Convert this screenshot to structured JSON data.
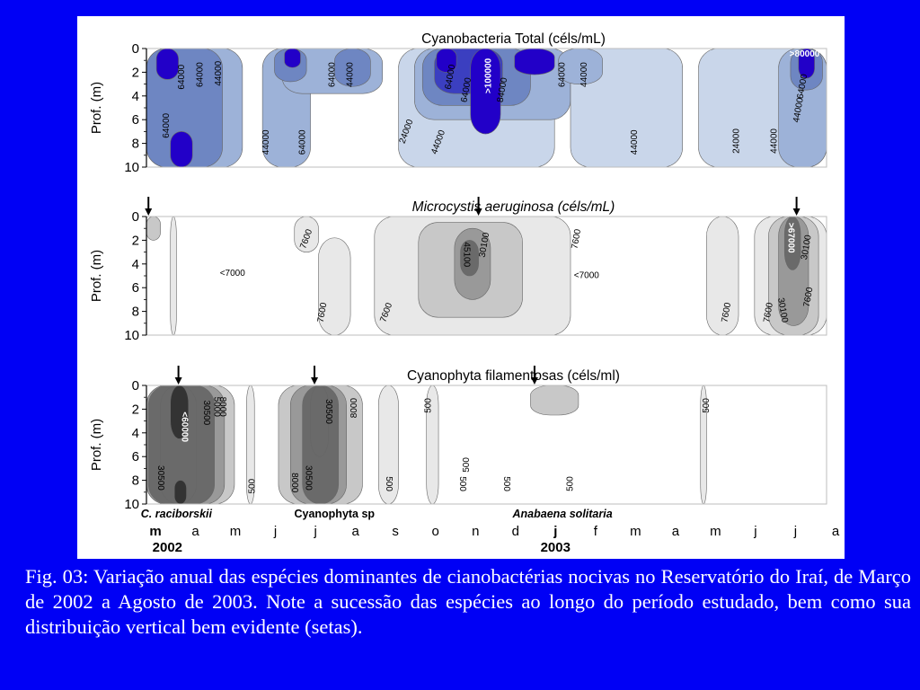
{
  "figure": {
    "panels": [
      {
        "title": "Cyanobacteria Total (céls/mL)",
        "title_italic": false,
        "ylabel": "Prof. (m)",
        "yticks": [
          "0",
          "2",
          "4",
          "6",
          "8",
          "10"
        ],
        "arrows": [],
        "contour_labels": [
          {
            "text": "64000",
            "x": 0.5,
            "y": 6.5,
            "rot": -90
          },
          {
            "text": "64000",
            "x": 0.88,
            "y": 2.4,
            "rot": -90
          },
          {
            "text": "64000",
            "x": 1.35,
            "y": 2.2,
            "rot": -90
          },
          {
            "text": "44000",
            "x": 1.8,
            "y": 2.1,
            "rot": -90
          },
          {
            "text": "44000",
            "x": 3.0,
            "y": 7.9,
            "rot": -90
          },
          {
            "text": "64000",
            "x": 3.9,
            "y": 7.9,
            "rot": -90
          },
          {
            "text": "64000",
            "x": 4.65,
            "y": 2.2,
            "rot": -90
          },
          {
            "text": "44000",
            "x": 5.1,
            "y": 2.2,
            "rot": -90
          },
          {
            "text": "24000",
            "x": 6.5,
            "y": 7.0,
            "rot": -70
          },
          {
            "text": "44000",
            "x": 7.3,
            "y": 7.9,
            "rot": -70
          },
          {
            "text": "64000",
            "x": 7.6,
            "y": 2.4,
            "rot": -80
          },
          {
            "text": "64000",
            "x": 8.0,
            "y": 3.5,
            "rot": -80
          },
          {
            "text": ">100000",
            "x": 8.55,
            "y": 2.3,
            "rot": -90,
            "color": "#ffffff"
          },
          {
            "text": "84000",
            "x": 8.9,
            "y": 3.5,
            "rot": -80
          },
          {
            "text": "64000",
            "x": 10.4,
            "y": 2.2,
            "rot": -90
          },
          {
            "text": "44000",
            "x": 10.95,
            "y": 2.2,
            "rot": -90
          },
          {
            "text": "44000",
            "x": 12.2,
            "y": 7.9,
            "rot": -90
          },
          {
            "text": "24000",
            "x": 14.75,
            "y": 7.8,
            "rot": -90
          },
          {
            "text": "44000",
            "x": 15.7,
            "y": 7.8,
            "rot": -90
          },
          {
            "text": "64000",
            "x": 16.4,
            "y": 3.2,
            "rot": -80
          },
          {
            "text": "44000",
            "x": 16.3,
            "y": 5.2,
            "rot": -80
          },
          {
            "text": ">80000",
            "x": 16.45,
            "y": 0.5,
            "rot": 0,
            "color": "#ffffff"
          }
        ]
      },
      {
        "title": "Microcystis aeruginosa (céls/mL)",
        "title_italic": true,
        "ylabel": "Prof. (m)",
        "yticks": [
          "0",
          "2",
          "4",
          "6",
          "8",
          "10"
        ],
        "arrows": [
          0.05,
          8.3,
          16.25
        ],
        "contour_labels": [
          {
            "text": "7600",
            "x": 4.0,
            "y": 1.9,
            "rot": -70
          },
          {
            "text": "<7000",
            "x": 2.15,
            "y": 4.8,
            "rot": 0
          },
          {
            "text": "7600",
            "x": 4.4,
            "y": 8.1,
            "rot": -80
          },
          {
            "text": "7600",
            "x": 6.0,
            "y": 8.1,
            "rot": -70
          },
          {
            "text": "45100",
            "x": 8.0,
            "y": 3.2,
            "rot": 90
          },
          {
            "text": "30100",
            "x": 8.45,
            "y": 2.4,
            "rot": -80
          },
          {
            "text": "7600",
            "x": 10.75,
            "y": 1.9,
            "rot": -80
          },
          {
            "text": "<7000",
            "x": 11.0,
            "y": 5.0,
            "rot": 0
          },
          {
            "text": "7600",
            "x": 14.5,
            "y": 8.1,
            "rot": -80
          },
          {
            "text": ">67000",
            "x": 16.1,
            "y": 1.8,
            "rot": 90,
            "color": "#ffffff"
          },
          {
            "text": "30100",
            "x": 16.5,
            "y": 2.6,
            "rot": -80
          },
          {
            "text": "30100",
            "x": 15.9,
            "y": 7.9,
            "rot": 80
          },
          {
            "text": "7600",
            "x": 15.55,
            "y": 8.1,
            "rot": -80
          },
          {
            "text": "7600",
            "x": 16.55,
            "y": 6.8,
            "rot": -80
          }
        ]
      },
      {
        "title": "Cyanophyta filamentosas (céls/ml)",
        "title_italic": false,
        "ylabel": "Prof. (m)",
        "yticks": [
          "0",
          "2",
          "4",
          "6",
          "8",
          "10"
        ],
        "arrows": [
          0.8,
          4.2,
          9.7
        ],
        "contour_labels": [
          {
            "text": "<60000",
            "x": 0.95,
            "y": 3.5,
            "rot": 90,
            "color": "#ffffff"
          },
          {
            "text": "30500",
            "x": 1.5,
            "y": 2.3,
            "rot": 90
          },
          {
            "text": "5000",
            "x": 1.75,
            "y": 1.8,
            "rot": 90
          },
          {
            "text": "8000",
            "x": 1.9,
            "y": 1.8,
            "rot": 90
          },
          {
            "text": "30500",
            "x": 0.35,
            "y": 7.8,
            "rot": 90
          },
          {
            "text": "500",
            "x": 2.65,
            "y": 8.5,
            "rot": -90
          },
          {
            "text": "8000",
            "x": 3.7,
            "y": 8.2,
            "rot": 90
          },
          {
            "text": "30500",
            "x": 4.05,
            "y": 7.8,
            "rot": 90
          },
          {
            "text": "30500",
            "x": 4.55,
            "y": 2.2,
            "rot": 90
          },
          {
            "text": "8000",
            "x": 5.2,
            "y": 1.9,
            "rot": -90
          },
          {
            "text": "500",
            "x": 6.05,
            "y": 8.3,
            "rot": 90
          },
          {
            "text": "500",
            "x": 7.05,
            "y": 1.7,
            "rot": -90
          },
          {
            "text": "500",
            "x": 8.0,
            "y": 6.7,
            "rot": -90
          },
          {
            "text": "500",
            "x": 7.9,
            "y": 8.3,
            "rot": 90
          },
          {
            "text": "500",
            "x": 9.0,
            "y": 8.3,
            "rot": 90
          },
          {
            "text": "500",
            "x": 10.6,
            "y": 8.3,
            "rot": -90
          },
          {
            "text": "500",
            "x": 14.0,
            "y": 1.7,
            "rot": -90
          }
        ]
      }
    ],
    "species_labels": [
      {
        "text": "C. raciborskii",
        "month": 0.75,
        "italic": true
      },
      {
        "text": "Cyanophyta sp",
        "month": 4.7,
        "italic": false
      },
      {
        "text": "Anabaena solitaria",
        "month": 10.4,
        "italic": true
      }
    ],
    "months": [
      "m",
      "a",
      "m",
      "j",
      "j",
      "a",
      "s",
      "o",
      "n",
      "d",
      "j",
      "f",
      "m",
      "a",
      "m",
      "j",
      "j",
      "a"
    ],
    "bold_months": [
      0,
      10
    ],
    "years": [
      {
        "text": "2002",
        "month": 0.3
      },
      {
        "text": "2003",
        "month": 10.0
      }
    ]
  },
  "chart_data": [
    {
      "type": "heatmap",
      "title": "Cyanobacteria Total (céls/mL)",
      "xlabel": "",
      "ylabel": "Prof. (m)",
      "x": [
        "m",
        "a",
        "m",
        "j",
        "j",
        "a",
        "s",
        "o",
        "n",
        "d",
        "j",
        "f",
        "m",
        "a",
        "m",
        "j",
        "j",
        "a"
      ],
      "x_years": {
        "2002": "m",
        "2003": "j"
      },
      "ylim": [
        10,
        0
      ],
      "contour_levels": [
        24000,
        44000,
        64000,
        84000,
        100000
      ],
      "max_label": ">100000",
      "annotation": ">80000",
      "color_scale": [
        "#ffffff",
        "#c9d6ea",
        "#9db2d8",
        "#6e86c2",
        "#3b3fc0",
        "#2200c8"
      ],
      "cells": [
        {
          "x0": 0.0,
          "x1": 2.4,
          "y0": 0,
          "y1": 10,
          "v": 44000
        },
        {
          "x0": 0.0,
          "x1": 1.9,
          "y0": 0,
          "y1": 10,
          "v": 64000
        },
        {
          "x0": 0.25,
          "x1": 0.8,
          "y0": 0,
          "y1": 2.6,
          "v": 100000
        },
        {
          "x0": 0.6,
          "x1": 1.15,
          "y0": 7.0,
          "y1": 10,
          "v": 100000
        },
        {
          "x0": 2.9,
          "x1": 4.1,
          "y0": 0,
          "y1": 10,
          "v": 44000
        },
        {
          "x0": 3.4,
          "x1": 5.9,
          "y0": 0,
          "y1": 3.8,
          "v": 44000
        },
        {
          "x0": 3.2,
          "x1": 4.0,
          "y0": 0,
          "y1": 2.8,
          "v": 64000
        },
        {
          "x0": 3.45,
          "x1": 3.85,
          "y0": 0,
          "y1": 1.6,
          "v": 100000
        },
        {
          "x0": 4.7,
          "x1": 5.6,
          "y0": 0,
          "y1": 3.2,
          "v": 64000
        },
        {
          "x0": 6.3,
          "x1": 10.2,
          "y0": 0,
          "y1": 10,
          "v": 24000
        },
        {
          "x0": 6.7,
          "x1": 10.6,
          "y0": 0,
          "y1": 6.0,
          "v": 44000
        },
        {
          "x0": 6.9,
          "x1": 9.6,
          "y0": 0,
          "y1": 4.8,
          "v": 64000
        },
        {
          "x0": 7.2,
          "x1": 8.9,
          "y0": 0,
          "y1": 3.8,
          "v": 84000
        },
        {
          "x0": 8.1,
          "x1": 8.85,
          "y0": 0,
          "y1": 7.2,
          "v": 100000
        },
        {
          "x0": 7.25,
          "x1": 7.75,
          "y0": 0,
          "y1": 2.0,
          "v": 100000
        },
        {
          "x0": 9.2,
          "x1": 10.2,
          "y0": 0,
          "y1": 2.2,
          "v": 100000
        },
        {
          "x0": 10.6,
          "x1": 13.4,
          "y0": 0,
          "y1": 10,
          "v": 24000
        },
        {
          "x0": 10.3,
          "x1": 11.4,
          "y0": 0,
          "y1": 3.0,
          "v": 44000
        },
        {
          "x0": 13.8,
          "x1": 17.0,
          "y0": 0,
          "y1": 10,
          "v": 24000
        },
        {
          "x0": 15.8,
          "x1": 17.0,
          "y0": 0,
          "y1": 10,
          "v": 44000
        },
        {
          "x0": 16.1,
          "x1": 16.9,
          "y0": 0,
          "y1": 3.5,
          "v": 64000
        },
        {
          "x0": 16.3,
          "x1": 16.7,
          "y0": 0,
          "y1": 2.5,
          "v": 100000
        }
      ]
    },
    {
      "type": "heatmap",
      "title": "Microcystis aeruginosa (céls/mL)",
      "xlabel": "",
      "ylabel": "Prof. (m)",
      "x": [
        "m",
        "a",
        "m",
        "j",
        "j",
        "a",
        "s",
        "o",
        "n",
        "d",
        "j",
        "f",
        "m",
        "a",
        "m",
        "j",
        "j",
        "a"
      ],
      "ylim": [
        10,
        0
      ],
      "contour_levels": [
        7600,
        30100,
        45100,
        67000
      ],
      "min_label": "<7000",
      "max_label": ">67000",
      "color_scale": [
        "#ffffff",
        "#e8e8e8",
        "#c8c8c8",
        "#999999",
        "#6a6a6a",
        "#333333",
        "#0a0a0a"
      ],
      "cells": [
        {
          "x0": 0.0,
          "x1": 0.35,
          "y0": 0,
          "y1": 2.0,
          "v": 30100
        },
        {
          "x0": 0.6,
          "x1": 0.75,
          "y0": 0,
          "y1": 10,
          "v": 7600
        },
        {
          "x0": 3.7,
          "x1": 4.3,
          "y0": 0,
          "y1": 3.0,
          "v": 7600
        },
        {
          "x0": 4.3,
          "x1": 5.1,
          "y0": 1.8,
          "y1": 10,
          "v": 7600
        },
        {
          "x0": 5.7,
          "x1": 10.6,
          "y0": 0,
          "y1": 10,
          "v": 7600
        },
        {
          "x0": 6.8,
          "x1": 9.4,
          "y0": 0.5,
          "y1": 8.5,
          "v": 30100
        },
        {
          "x0": 7.7,
          "x1": 8.6,
          "y0": 1.0,
          "y1": 7.0,
          "v": 45100
        },
        {
          "x0": 7.85,
          "x1": 8.3,
          "y0": 2.0,
          "y1": 5.0,
          "v": 67000
        },
        {
          "x0": 14.0,
          "x1": 14.8,
          "y0": 0,
          "y1": 10,
          "v": 7600
        },
        {
          "x0": 15.2,
          "x1": 17.0,
          "y0": 0,
          "y1": 10,
          "v": 7600
        },
        {
          "x0": 15.55,
          "x1": 16.8,
          "y0": 0,
          "y1": 10,
          "v": 30100
        },
        {
          "x0": 15.8,
          "x1": 16.55,
          "y0": 0,
          "y1": 9.2,
          "v": 45100
        },
        {
          "x0": 15.95,
          "x1": 16.35,
          "y0": 0,
          "y1": 4.5,
          "v": 67000
        }
      ]
    },
    {
      "type": "heatmap",
      "title": "Cyanophyta filamentosas (céls/ml)",
      "xlabel": "",
      "ylabel": "Prof. (m)",
      "x": [
        "m",
        "a",
        "m",
        "j",
        "j",
        "a",
        "s",
        "o",
        "n",
        "d",
        "j",
        "f",
        "m",
        "a",
        "m",
        "j",
        "j",
        "a"
      ],
      "ylim": [
        10,
        0
      ],
      "contour_levels": [
        500,
        5000,
        8000,
        30500,
        60000
      ],
      "max_label": "<60000",
      "color_scale": [
        "#ffffff",
        "#e8e8e8",
        "#c8c8c8",
        "#999999",
        "#6a6a6a",
        "#333333",
        "#0a0a0a"
      ],
      "cells": [
        {
          "x0": 0.0,
          "x1": 2.2,
          "y0": 0,
          "y1": 10,
          "v": 5000
        },
        {
          "x0": 0.0,
          "x1": 1.95,
          "y0": 0,
          "y1": 10,
          "v": 8000
        },
        {
          "x0": 0.05,
          "x1": 1.7,
          "y0": 0,
          "y1": 10,
          "v": 30500
        },
        {
          "x0": 0.35,
          "x1": 1.25,
          "y0": 0,
          "y1": 10,
          "v": 45000
        },
        {
          "x0": 0.6,
          "x1": 1.05,
          "y0": 0,
          "y1": 4.5,
          "v": 60000
        },
        {
          "x0": 0.7,
          "x1": 1.0,
          "y0": 8.0,
          "y1": 10,
          "v": 60000
        },
        {
          "x0": 2.5,
          "x1": 2.7,
          "y0": 0,
          "y1": 10,
          "v": 500
        },
        {
          "x0": 3.3,
          "x1": 5.4,
          "y0": 0,
          "y1": 10,
          "v": 5000
        },
        {
          "x0": 3.6,
          "x1": 5.0,
          "y0": 0,
          "y1": 10,
          "v": 8000
        },
        {
          "x0": 3.9,
          "x1": 4.8,
          "y0": 0,
          "y1": 10,
          "v": 30500
        },
        {
          "x0": 4.1,
          "x1": 4.55,
          "y0": 0,
          "y1": 6.0,
          "v": 45000
        },
        {
          "x0": 5.8,
          "x1": 6.3,
          "y0": 0,
          "y1": 10,
          "v": 500
        },
        {
          "x0": 7.0,
          "x1": 7.3,
          "y0": 0,
          "y1": 10,
          "v": 500
        },
        {
          "x0": 9.6,
          "x1": 10.8,
          "y0": 0,
          "y1": 2.5,
          "v": 5000
        },
        {
          "x0": 13.85,
          "x1": 14.0,
          "y0": 0,
          "y1": 10,
          "v": 500
        }
      ]
    }
  ],
  "caption": "Fig. 03: Variação anual das espécies dominantes de cianobactérias nocivas no Reservatório do Iraí, de Março de 2002 a Agosto de 2003. Note a sucessão das espécies ao longo do período estudado, bem como sua distribuição vertical bem evidente (setas)."
}
